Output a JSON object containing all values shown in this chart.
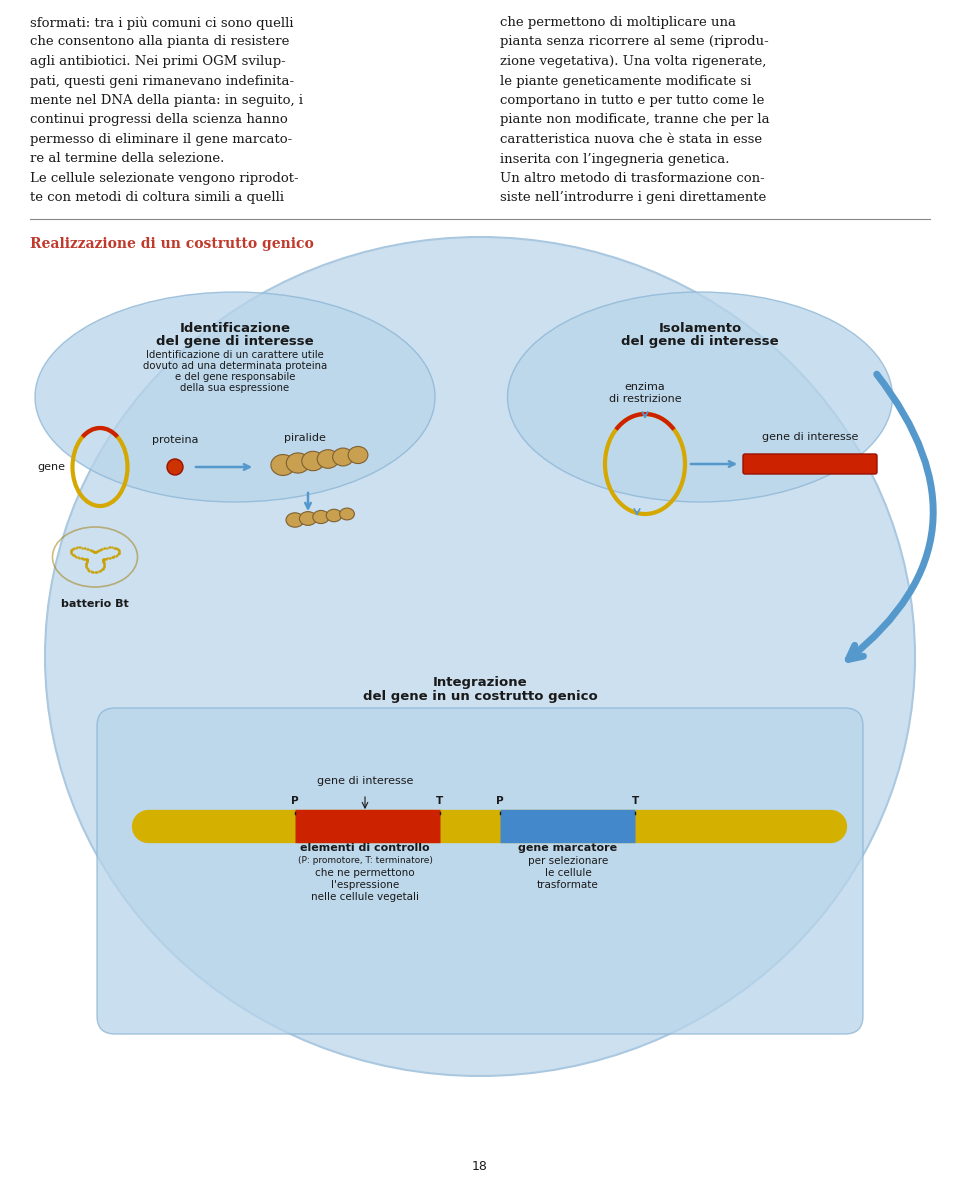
{
  "page_number": "18",
  "background_color": "#ffffff",
  "text_color": "#1a1a1a",
  "section_title": "Realizzazione di un costrutto genico",
  "section_title_color": "#c0392b",
  "section_title_fontsize": 10,
  "divider_color": "#888888",
  "col1_text": [
    "sformati: tra i più comuni ci sono quelli",
    "che consentono alla pianta di resistere",
    "agli antibiotici. Nei primi OGM svilup-",
    "pati, questi geni rimanevano indefinita-",
    "mente nel DNA della pianta: in seguito, i",
    "continui progressi della scienza hanno",
    "permesso di eliminare il gene marcato-",
    "re al termine della selezione.",
    "Le cellule selezionate vengono riprodot-",
    "te con metodi di coltura simili a quelli"
  ],
  "col2_text": [
    "che permettono di moltiplicare una",
    "pianta senza ricorrere al seme (riprodu-",
    "zione vegetativa). Una volta rigenerate,",
    "le piante geneticamente modificate si",
    "comportano in tutto e per tutto come le",
    "piante non modificate, tranne che per la",
    "caratteristica nuova che è stata in esse",
    "inserita con l’ingegneria genetica.",
    "Un altro metodo di trasformazione con-",
    "siste nell’introdurre i geni direttamente"
  ],
  "text_fontsize": 9.5,
  "text_font": "serif",
  "diagram_bg": "#cce0f0",
  "bubble_bg": "#b8d4ea",
  "bubble_edge": "#8ab4d4"
}
